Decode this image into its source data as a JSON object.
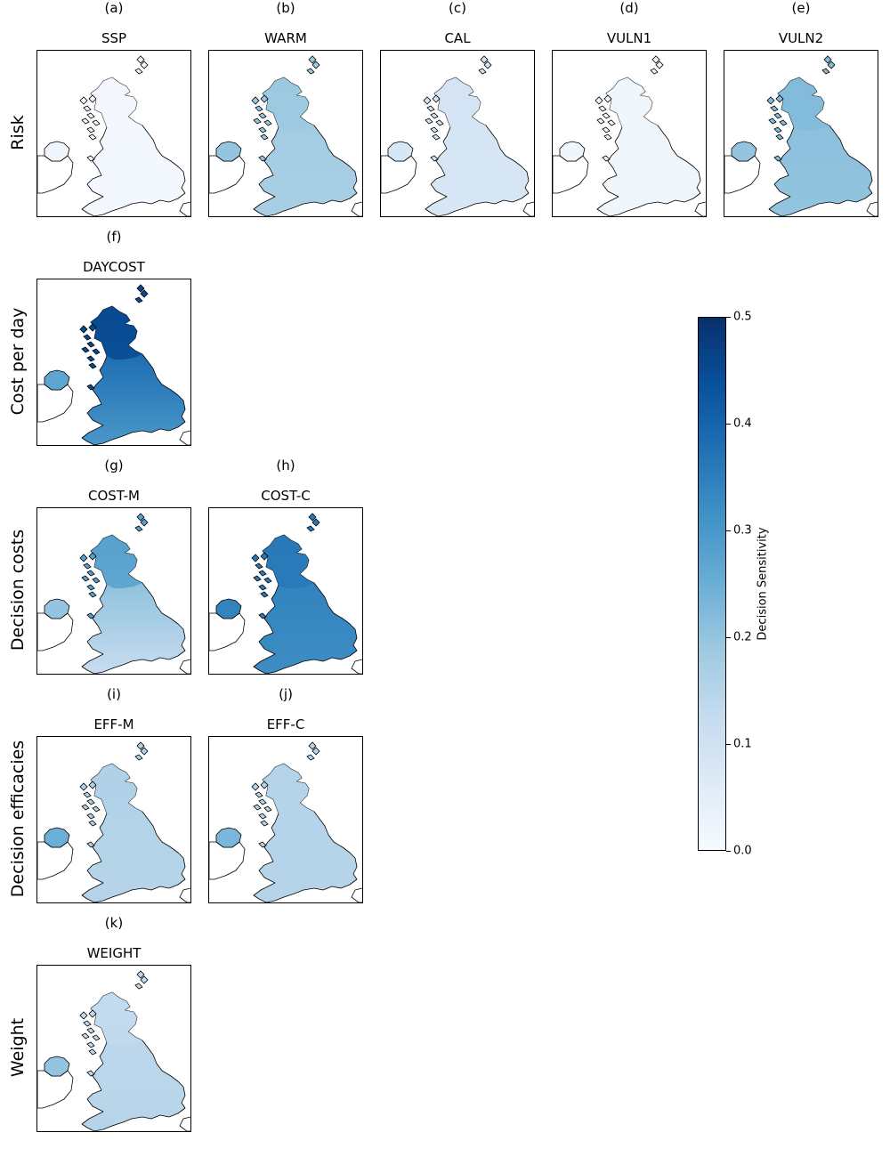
{
  "colors": {
    "cmap": [
      "#f7fbff",
      "#deebf7",
      "#c6dbef",
      "#9ecae1",
      "#6baed6",
      "#4292c6",
      "#2171b5",
      "#08519c",
      "#08306b"
    ],
    "coast": "#000000",
    "frame": "#000000"
  },
  "chart_data": {
    "type": "heatmap",
    "colorbar": {
      "label": "Decision Sensitivity",
      "range": [
        0,
        0.5
      ],
      "ticks": [
        "0.0",
        "0.1",
        "0.2",
        "0.3",
        "0.4",
        "0.5"
      ],
      "tick_values": [
        0,
        0.1,
        0.2,
        0.3,
        0.4,
        0.5
      ]
    },
    "rows": [
      {
        "label": "Risk"
      },
      {
        "label": "Cost per day"
      },
      {
        "label": "Decision costs"
      },
      {
        "label": "Decision efficacies"
      },
      {
        "label": "Weight"
      }
    ],
    "panels": [
      {
        "letter": "(a)",
        "title": "SSP",
        "row": 0,
        "col": 0,
        "sensitivity": {
          "mean": 0.01,
          "scotland": 0.01,
          "northern_ireland": 0.02
        }
      },
      {
        "letter": "(b)",
        "title": "WARM",
        "row": 0,
        "col": 1,
        "sensitivity": {
          "mean": 0.17,
          "scotland": 0.19,
          "northern_ireland": 0.2
        }
      },
      {
        "letter": "(c)",
        "title": "CAL",
        "row": 0,
        "col": 2,
        "sensitivity": {
          "mean": 0.08,
          "scotland": 0.09,
          "northern_ireland": 0.08
        }
      },
      {
        "letter": "(d)",
        "title": "VULN1",
        "row": 0,
        "col": 3,
        "sensitivity": {
          "mean": 0.02,
          "scotland": 0.02,
          "northern_ireland": 0.02
        }
      },
      {
        "letter": "(e)",
        "title": "VULN2",
        "row": 0,
        "col": 4,
        "sensitivity": {
          "mean": 0.2,
          "scotland": 0.22,
          "northern_ireland": 0.2
        }
      },
      {
        "letter": "(f)",
        "title": "DAYCOST",
        "row": 1,
        "col": 0,
        "sensitivity": {
          "mean": 0.3,
          "scotland": 0.45,
          "northern_ireland": 0.27
        }
      },
      {
        "letter": "(g)",
        "title": "COST-M",
        "row": 2,
        "col": 0,
        "sensitivity": {
          "mean": 0.12,
          "scotland": 0.28,
          "northern_ireland": 0.2
        }
      },
      {
        "letter": "(h)",
        "title": "COST-C",
        "row": 2,
        "col": 1,
        "sensitivity": {
          "mean": 0.32,
          "scotland": 0.36,
          "northern_ireland": 0.34
        }
      },
      {
        "letter": "(i)",
        "title": "EFF-M",
        "row": 3,
        "col": 0,
        "sensitivity": {
          "mean": 0.15,
          "scotland": 0.16,
          "northern_ireland": 0.25
        }
      },
      {
        "letter": "(j)",
        "title": "EFF-C",
        "row": 3,
        "col": 1,
        "sensitivity": {
          "mean": 0.15,
          "scotland": 0.15,
          "northern_ireland": 0.23
        }
      },
      {
        "letter": "(k)",
        "title": "WEIGHT",
        "row": 4,
        "col": 0,
        "sensitivity": {
          "mean": 0.15,
          "scotland": 0.13,
          "northern_ireland": 0.2
        }
      }
    ]
  }
}
